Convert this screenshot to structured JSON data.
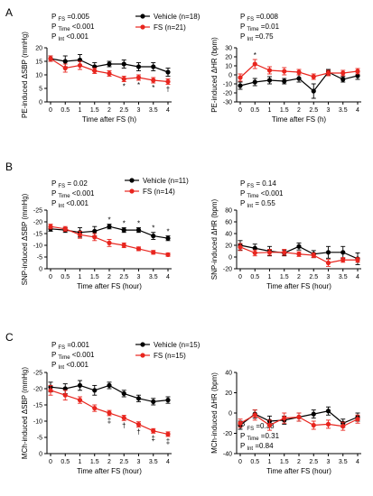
{
  "panels": [
    {
      "letter": "A",
      "charts": [
        0,
        1
      ]
    },
    {
      "letter": "B",
      "charts": [
        2,
        3
      ]
    },
    {
      "letter": "C",
      "charts": [
        4,
        5
      ]
    }
  ],
  "chart_data": [
    {
      "type": "line",
      "x": [
        0,
        0.5,
        1,
        1.5,
        2,
        2.5,
        3,
        3.5,
        4
      ],
      "xticks": [
        "0",
        "0.5",
        "1",
        "1.5",
        "2",
        "2.5",
        "3",
        "3.5",
        "4"
      ],
      "xlabel": "Time after FS (h)",
      "ylabel": "PE-induced ΔSBP (mmHg)",
      "ylim": [
        0,
        20
      ],
      "yticks": [
        0,
        5,
        10,
        15,
        20
      ],
      "ytick_labels": [
        "0",
        "5",
        "10",
        "15",
        "20"
      ],
      "stats": [
        {
          "sub": "FS",
          "text": "=0.005"
        },
        {
          "sub": "Time",
          "text": "<0.001"
        },
        {
          "sub": "Int",
          "text": "<0.001"
        }
      ],
      "series": [
        {
          "name": "Vehicle (n=18)",
          "color": "#000000",
          "values": [
            16,
            15,
            15.5,
            13,
            14,
            14,
            13,
            13,
            11
          ],
          "err": [
            1,
            2,
            2,
            1.5,
            1,
            1.5,
            1.5,
            1.5,
            1.5
          ]
        },
        {
          "name": "FS (n=21)",
          "color": "#e8251e",
          "values": [
            16,
            12.5,
            13.5,
            11.5,
            10.5,
            8.5,
            9,
            8,
            7.5
          ],
          "err": [
            1,
            1.5,
            1.5,
            1,
            1,
            1,
            1,
            1,
            1
          ]
        }
      ],
      "marks": [
        {
          "x": 2.5,
          "text": "*"
        },
        {
          "x": 3,
          "text": "*"
        },
        {
          "x": 3.5,
          "text": "*"
        },
        {
          "x": 4,
          "text": "†"
        }
      ]
    },
    {
      "type": "line",
      "x": [
        0,
        0.5,
        1,
        1.5,
        2,
        2.5,
        3,
        3.5,
        4
      ],
      "xticks": [
        "0",
        "0.5",
        "1",
        "1.5",
        "2",
        "2.5",
        "3",
        "3.5",
        "4"
      ],
      "xlabel": "Time after FS (h)",
      "ylabel": "PE-induced ΔHR (bpm)",
      "ylim": [
        -30,
        30
      ],
      "yticks": [
        -30,
        -20,
        -10,
        0,
        10,
        20,
        30
      ],
      "ytick_labels": [
        "-30",
        "-20",
        "-10",
        "0",
        "10",
        "20",
        "30"
      ],
      "stats": [
        {
          "sub": "FS",
          "text": "=0.008"
        },
        {
          "sub": "Time",
          "text": "=0.01"
        },
        {
          "sub": "Int",
          "text": "=0.75"
        }
      ],
      "series": [
        {
          "name": "Vehicle",
          "color": "#000000",
          "values": [
            -12,
            -8,
            -6,
            -7,
            -4,
            -18,
            3,
            -5,
            -1
          ],
          "err": [
            4,
            4,
            4,
            3,
            4,
            8,
            3,
            3,
            4
          ]
        },
        {
          "name": "FS",
          "color": "#e8251e",
          "values": [
            -3,
            12,
            5,
            4,
            3,
            -2,
            2,
            2,
            4
          ],
          "err": [
            4,
            5,
            4,
            4,
            3,
            3,
            3,
            3,
            3
          ]
        }
      ],
      "marks": [
        {
          "x": 0.5,
          "text": "*"
        }
      ]
    },
    {
      "type": "line",
      "x": [
        0,
        0.5,
        1,
        1.5,
        2,
        2.5,
        3,
        3.5,
        4
      ],
      "xticks": [
        "0",
        "0.5",
        "1",
        "1.5",
        "2",
        "2.5",
        "3",
        "3.5",
        "4"
      ],
      "xlabel": "Time after FS (hour)",
      "ylabel": "SNP-induced ΔSBP (mmHg)",
      "ylim": [
        0,
        -25
      ],
      "yticks": [
        0,
        -5,
        -10,
        -15,
        -20,
        -25
      ],
      "ytick_labels": [
        "0",
        "-5",
        "-10",
        "-15",
        "-20",
        "-25"
      ],
      "stats": [
        {
          "sub": "FS",
          "text": "= 0.02"
        },
        {
          "sub": "Time",
          "text": "<0.001"
        },
        {
          "sub": "Int",
          "text": "<0.001"
        }
      ],
      "series": [
        {
          "name": "Vehicle (n=11)",
          "color": "#000000",
          "values": [
            -17,
            -16.5,
            -15.5,
            -16,
            -18,
            -16.5,
            -16.5,
            -14,
            -13
          ],
          "err": [
            1,
            1,
            2,
            2,
            1,
            1,
            1,
            1.5,
            1
          ]
        },
        {
          "name": "FS (n=14)",
          "color": "#e8251e",
          "values": [
            -18,
            -17,
            -14.5,
            -13.5,
            -11,
            -10,
            -8.5,
            -7,
            -6
          ],
          "err": [
            1,
            1,
            1.5,
            1.5,
            1.5,
            1,
            0.8,
            0.8,
            0.7
          ]
        }
      ],
      "marks": [
        {
          "x": 2,
          "text": "*"
        },
        {
          "x": 2.5,
          "text": "*"
        },
        {
          "x": 3,
          "text": "*"
        },
        {
          "x": 3.5,
          "text": "*"
        },
        {
          "x": 4,
          "text": "*"
        }
      ]
    },
    {
      "type": "line",
      "x": [
        0,
        0.5,
        1,
        1.5,
        2,
        2.5,
        3,
        3.5,
        4
      ],
      "xticks": [
        "0",
        "0.5",
        "1",
        "1.5",
        "2",
        "2.5",
        "3",
        "3.5",
        "4"
      ],
      "xlabel": "Time after FS (hour)",
      "ylabel": "SNP-induced ΔHR (bpm)",
      "ylim": [
        -20,
        80
      ],
      "yticks": [
        -20,
        0,
        20,
        40,
        60,
        80
      ],
      "ytick_labels": [
        "-20",
        "0",
        "20",
        "40",
        "60",
        "80"
      ],
      "stats": [
        {
          "sub": "FS",
          "text": "= 0.14"
        },
        {
          "sub": "Time",
          "text": "<0.001"
        },
        {
          "sub": "Int",
          "text": "= 0.55"
        }
      ],
      "series": [
        {
          "name": "Vehicle",
          "color": "#000000",
          "values": [
            20,
            15,
            10,
            7,
            18,
            5,
            8,
            8,
            -3
          ],
          "err": [
            8,
            7,
            8,
            5,
            6,
            6,
            10,
            10,
            10
          ]
        },
        {
          "name": "FS",
          "color": "#e8251e",
          "values": [
            17,
            7,
            8,
            8,
            5,
            3,
            -10,
            -5,
            -5
          ],
          "err": [
            6,
            5,
            5,
            5,
            4,
            4,
            6,
            4,
            4
          ]
        }
      ],
      "marks": []
    },
    {
      "type": "line",
      "x": [
        0,
        0.5,
        1,
        1.5,
        2,
        2.5,
        3,
        3.5,
        4
      ],
      "xticks": [
        "0",
        "0.5",
        "1",
        "1.5",
        "2",
        "2.5",
        "3",
        "3.5",
        "4"
      ],
      "xlabel": "Time after FS (hour)",
      "ylabel": "MCh-induced ΔSBP (mmHg)",
      "ylim": [
        0,
        -25
      ],
      "yticks": [
        0,
        -5,
        -10,
        -15,
        -20,
        -25
      ],
      "ytick_labels": [
        "0",
        "-5",
        "-10",
        "-15",
        "-20",
        "-25"
      ],
      "stats": [
        {
          "sub": "FS",
          "text": "=0.001"
        },
        {
          "sub": "Time",
          "text": "<0.001"
        },
        {
          "sub": "Int",
          "text": "<0.001"
        }
      ],
      "series": [
        {
          "name": "Vehicle (n=15)",
          "color": "#000000",
          "values": [
            -20.5,
            -20,
            -21,
            -19.5,
            -21,
            -18.5,
            -17,
            -16,
            -16.5
          ],
          "err": [
            1.5,
            1.5,
            1.5,
            1.5,
            1,
            1,
            1,
            1,
            1
          ]
        },
        {
          "name": "FS (n=15)",
          "color": "#e8251e",
          "values": [
            -19.5,
            -18,
            -16.5,
            -14,
            -12.5,
            -11,
            -9,
            -7,
            -6
          ],
          "err": [
            1.5,
            1.5,
            1,
            1,
            0.8,
            0.8,
            0.8,
            0.7,
            0.7
          ]
        }
      ],
      "marks": [
        {
          "x": 2,
          "text": "‡"
        },
        {
          "x": 2.5,
          "text": "†"
        },
        {
          "x": 3,
          "text": "†"
        },
        {
          "x": 3.5,
          "text": "‡"
        },
        {
          "x": 4,
          "text": "‡"
        }
      ]
    },
    {
      "type": "line",
      "x": [
        0,
        0.5,
        1,
        1.5,
        2,
        2.5,
        3,
        3.5,
        4
      ],
      "xticks": [
        "0",
        "0.5",
        "1",
        "1.5",
        "2",
        "2.5",
        "3",
        "3.5",
        "4"
      ],
      "xlabel": "Time after FS (hour)",
      "ylabel": "MCh-induced ΔHR (bpm)",
      "ylim": [
        -40,
        40
      ],
      "yticks": [
        -40,
        -20,
        0,
        20,
        40
      ],
      "ytick_labels": [
        "-40",
        "-20",
        "0",
        "20",
        "40"
      ],
      "stats": [
        {
          "sub": "FS",
          "text": "=0.33"
        },
        {
          "sub": "Time",
          "text": "=0.31"
        },
        {
          "sub": "Int",
          "text": "=0.84"
        }
      ],
      "series": [
        {
          "name": "Vehicle",
          "color": "#000000",
          "values": [
            -12,
            -1,
            -8,
            -7,
            -4,
            -1,
            2,
            -10,
            -4
          ],
          "err": [
            4,
            4,
            5,
            4,
            4,
            4,
            4,
            4,
            4
          ]
        },
        {
          "name": "FS",
          "color": "#e8251e",
          "values": [
            -10,
            -2,
            -12,
            -5,
            -4,
            -12,
            -11,
            -13,
            -6
          ],
          "err": [
            4,
            5,
            5,
            5,
            4,
            4,
            4,
            4,
            4
          ]
        }
      ],
      "marks": []
    }
  ]
}
